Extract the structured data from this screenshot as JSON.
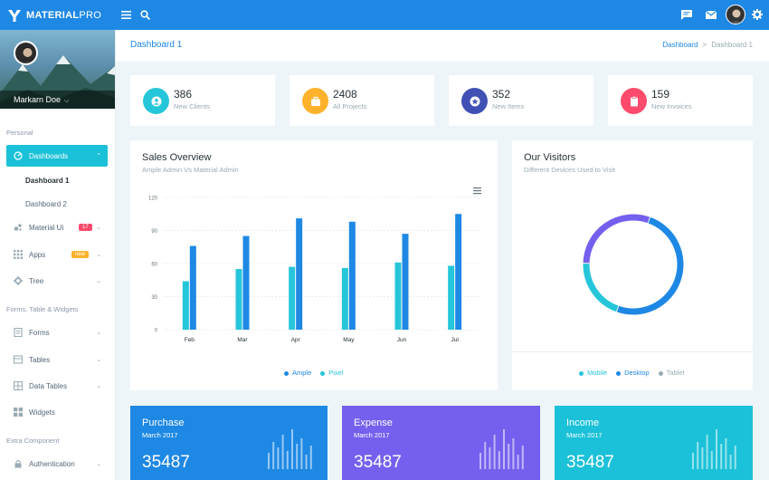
{
  "brand": {
    "name_bold": "MATERIAL",
    "name_light": "PRO"
  },
  "topbar": {
    "icons": [
      "menu-icon",
      "search-icon",
      "message-icon",
      "mail-icon",
      "avatar",
      "settings-icon"
    ]
  },
  "profile": {
    "name": "Markarn Doe"
  },
  "sidebar": {
    "caption_personal": "Personal",
    "dashboards": "Dashboards",
    "dashboard1": "Dashboard 1",
    "dashboard2": "Dashboard 2",
    "material_ui": "Material Ui",
    "material_ui_badge": "17",
    "apps": "Apps",
    "apps_badge": "new",
    "tree": "Tree",
    "caption_forms": "Forms, Table & Widgets",
    "forms": "Forms",
    "tables": "Tables",
    "data_tables": "Data Tables",
    "widgets": "Widgets",
    "caption_extra": "Extra Component",
    "authentication": "Authentication"
  },
  "header": {
    "title": "Dashboard 1",
    "breadcrumb_link": "Dashboard",
    "breadcrumb_sep": ">",
    "breadcrumb_current": "Dashboard 1"
  },
  "stats": [
    {
      "value": "386",
      "label": "New Clients",
      "color": "#26c6da"
    },
    {
      "value": "2408",
      "label": "All Projects",
      "color": "#ffb22b"
    },
    {
      "value": "352",
      "label": "New Items",
      "color": "#3f51b5"
    },
    {
      "value": "159",
      "label": "New Invoices",
      "color": "#fc4b6c"
    }
  ],
  "sales": {
    "title": "Sales Overview",
    "subtitle": "Ample Admin Vs Material Admin",
    "legend_a": "Ample",
    "legend_b": "Pixel"
  },
  "visitors": {
    "title": "Our Visitors",
    "subtitle": "Different Devices Used to Visit",
    "legend_mobile": "Mobile",
    "legend_desktop": "Desktop",
    "legend_tablet": "Tablet"
  },
  "bottom": [
    {
      "title": "Purchase",
      "sub": "March 2017",
      "value": "35487",
      "color": "#1e88e5"
    },
    {
      "title": "Expense",
      "sub": "March 2017",
      "value": "35487",
      "color": "#7460ee"
    },
    {
      "title": "Income",
      "sub": "March 2017",
      "value": "35487",
      "color": "#1bc1d8"
    }
  ],
  "chart_data": [
    {
      "type": "bar",
      "title": "Sales Overview",
      "categories": [
        "Feb",
        "Mar",
        "Apr",
        "May",
        "Jun",
        "Jul"
      ],
      "series": [
        {
          "name": "Pixel",
          "color": "#26c6da",
          "values": [
            44,
            55,
            57,
            56,
            61,
            58
          ]
        },
        {
          "name": "Ample",
          "color": "#1e88e5",
          "values": [
            76,
            85,
            101,
            98,
            87,
            105
          ]
        }
      ],
      "yticks": [
        0,
        30,
        60,
        90,
        120
      ],
      "ylim": [
        0,
        120
      ]
    },
    {
      "type": "pie",
      "title": "Our Visitors",
      "labels": [
        "Desktop",
        "Mobile",
        "Tablet"
      ],
      "values": [
        50,
        20,
        30
      ],
      "colors": [
        "#1e88e5",
        "#26c6da",
        "#7460ee"
      ]
    }
  ]
}
